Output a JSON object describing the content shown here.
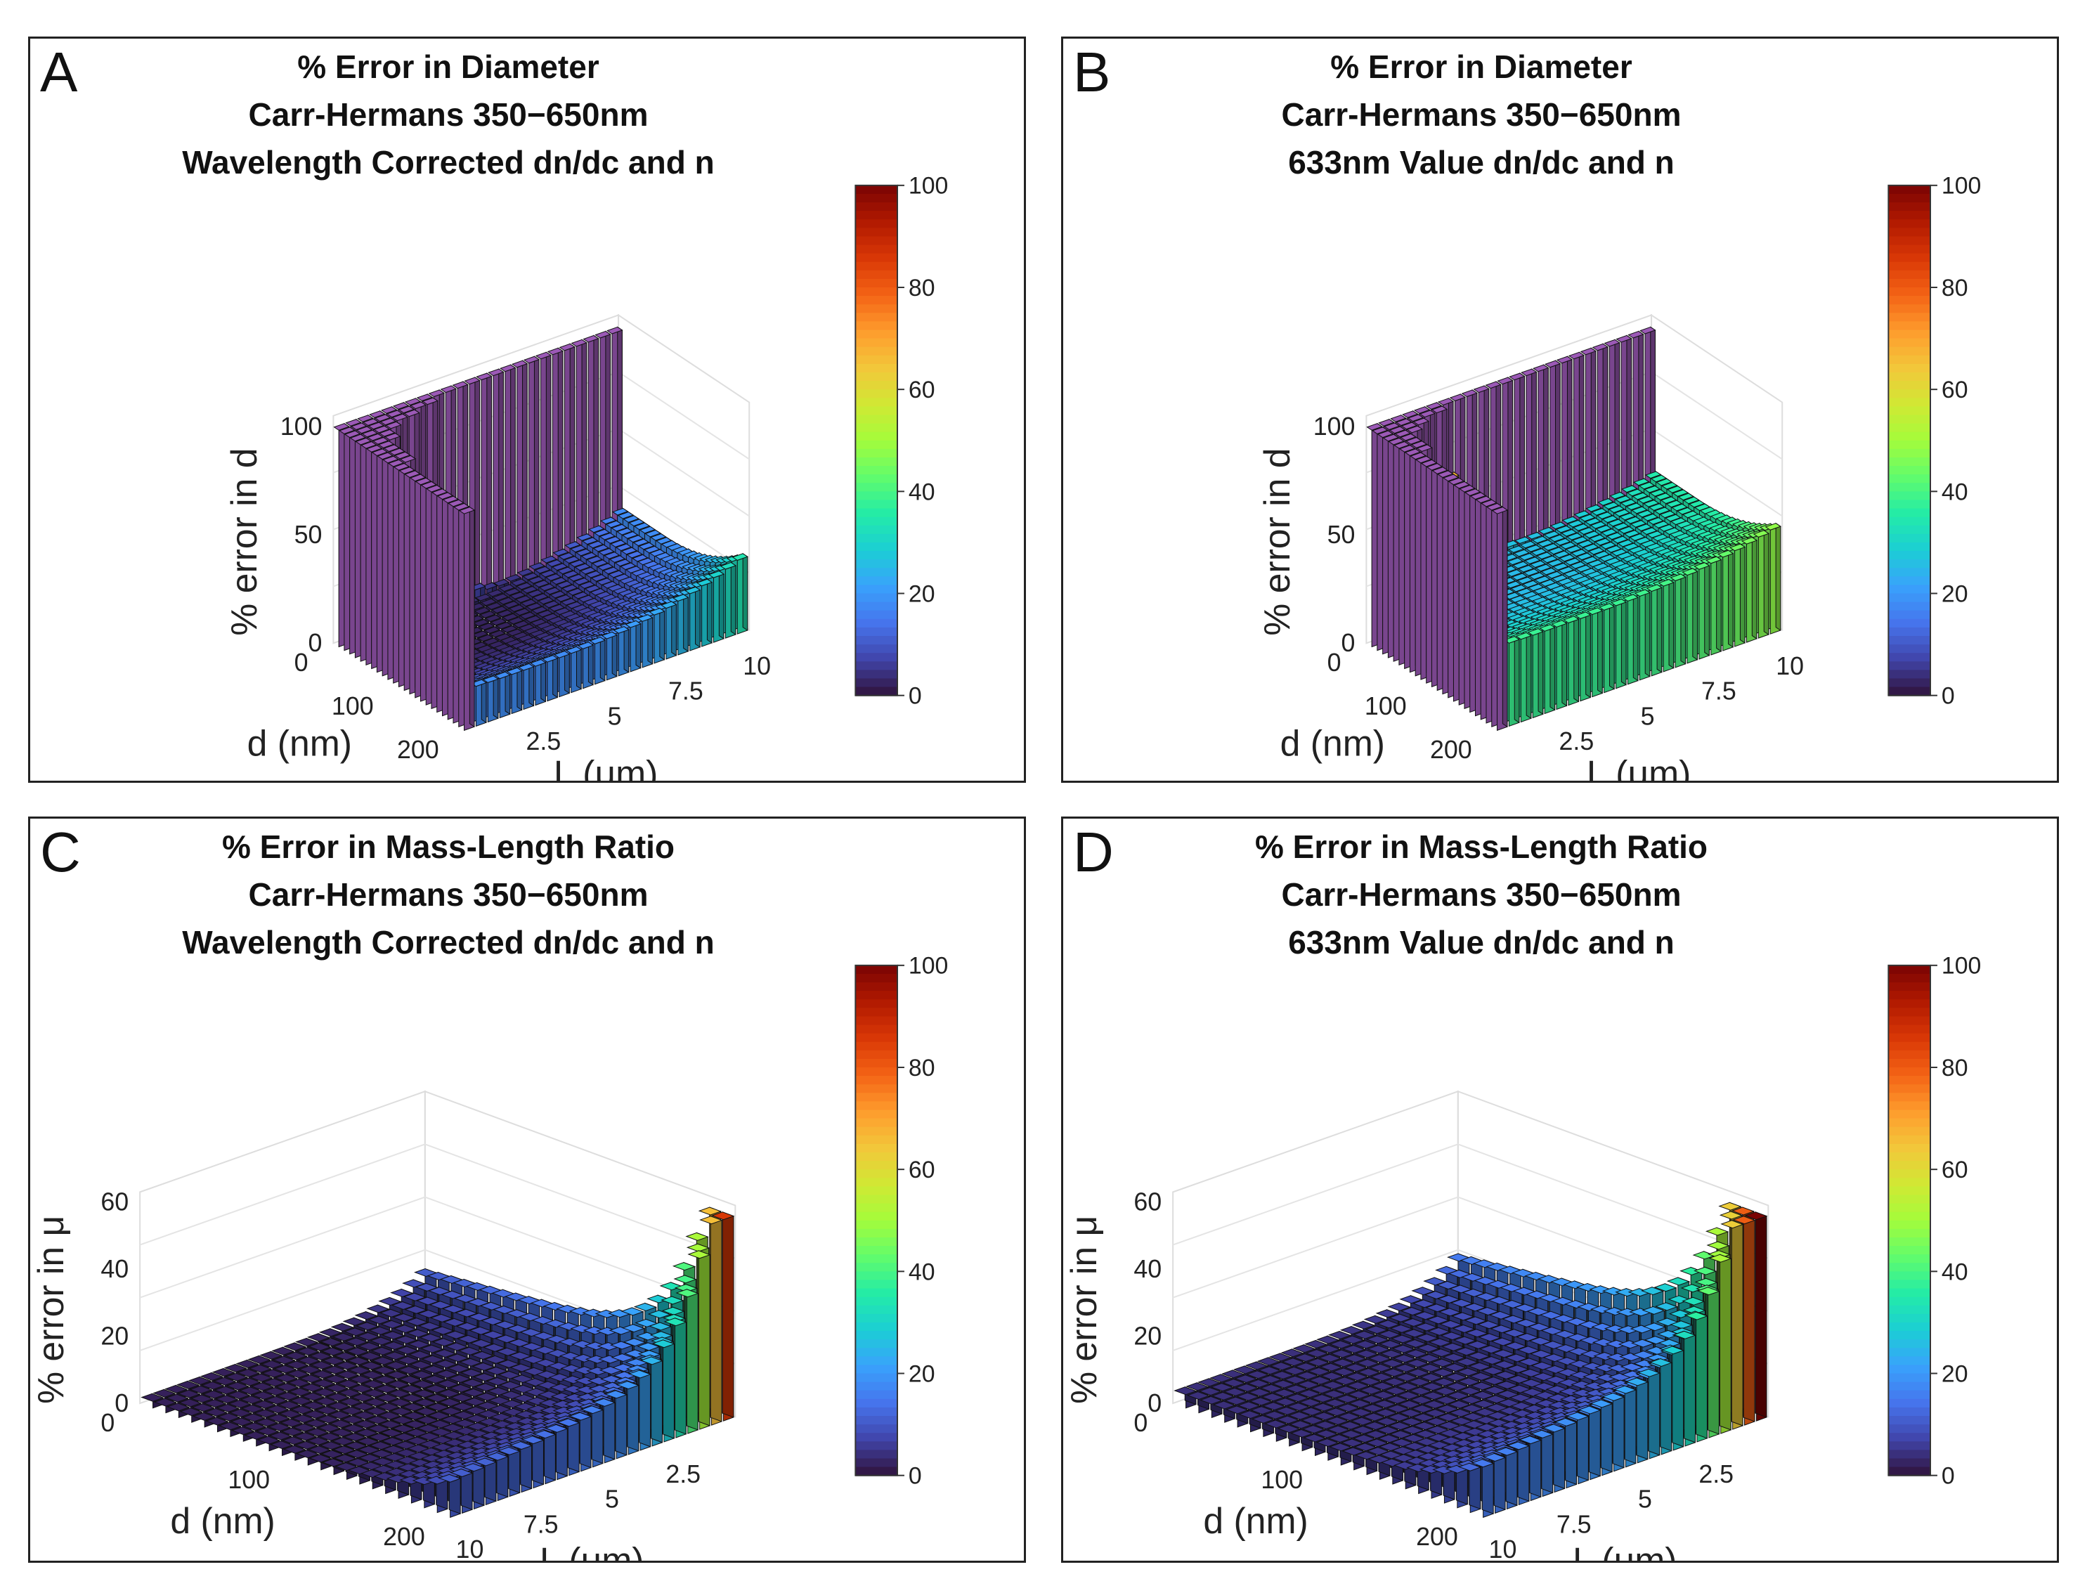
{
  "colormap": [
    "#30123b",
    "#4145ab",
    "#4675ed",
    "#39a2fc",
    "#1bcfd4",
    "#24eca6",
    "#61fc6c",
    "#a4fc3b",
    "#d1e834",
    "#f3c63a",
    "#fe9b2d",
    "#f36315",
    "#d93806",
    "#b11901",
    "#7a0403"
  ],
  "top_block_color": "#9b59b6",
  "panels": [
    {
      "letter": "A",
      "title": [
        "% Error in Diameter",
        "Carr-Hermans 350−650nm",
        "Wavelength Corrected dn/dc and n"
      ],
      "chart_data": {
        "type": "bar3d",
        "orientation": "diameter",
        "zlabel": "% error in d",
        "xlabel": "L (μm)",
        "ylabel": "d (nm)",
        "z_ticks": [
          "0",
          "50",
          "100"
        ],
        "z_range": [
          0,
          100
        ],
        "d_ticks": [
          "0",
          "100",
          "200"
        ],
        "L_ticks": [
          "2.5",
          "5",
          "7.5",
          "10"
        ],
        "colorbar": {
          "range": [
            0,
            100
          ],
          "ticks": [
            "0",
            "20",
            "40",
            "60",
            "80",
            "100"
          ]
        },
        "surface": {
          "cutoff_d_nm": [
            8,
            12,
            18,
            25,
            35,
            45,
            55,
            65,
            80,
            95,
            110,
            120
          ],
          "cutoff_L_um": [
            3.5,
            3.0,
            2.5,
            2.0,
            1.5,
            1.3,
            1.1,
            1.0,
            0.9,
            0.8,
            0.7,
            0.6
          ],
          "max_value": 100,
          "edge_value_long_L": 18,
          "edge_value_large_d": 18,
          "valley_min": 2
        }
      }
    },
    {
      "letter": "B",
      "title": [
        "% Error in Diameter",
        "Carr-Hermans 350−650nm",
        "633nm Value dn/dc and n"
      ],
      "chart_data": {
        "type": "bar3d",
        "orientation": "diameter",
        "zlabel": "% error in d",
        "xlabel": "L (μm)",
        "ylabel": "d (nm)",
        "z_ticks": [
          "0",
          "50",
          "100"
        ],
        "z_range": [
          0,
          100
        ],
        "d_ticks": [
          "0",
          "100",
          "200"
        ],
        "L_ticks": [
          "2.5",
          "5",
          "7.5",
          "10"
        ],
        "colorbar": {
          "range": [
            0,
            100
          ],
          "ticks": [
            "0",
            "20",
            "40",
            "60",
            "80",
            "100"
          ]
        },
        "surface": {
          "cutoff_d_nm": [
            5,
            10,
            15,
            22,
            30,
            40,
            50,
            60,
            70,
            80,
            90,
            100
          ],
          "cutoff_L_um": [
            3.0,
            2.5,
            2.0,
            1.6,
            1.3,
            1.1,
            1.0,
            0.9,
            0.8,
            0.7,
            0.6,
            0.5
          ],
          "max_value": 100,
          "edge_value_long_L": 35,
          "edge_value_large_d": 38,
          "valley_min": 25
        }
      }
    },
    {
      "letter": "C",
      "title": [
        "% Error in Mass-Length Ratio",
        "Carr-Hermans 350−650nm",
        "Wavelength Corrected dn/dc and n"
      ],
      "chart_data": {
        "type": "bar3d",
        "orientation": "mass",
        "zlabel": "% error in μ",
        "xlabel": "L (μm)",
        "ylabel": "d (nm)",
        "z_ticks": [
          "0",
          "20",
          "40",
          "60"
        ],
        "z_range": [
          0,
          60
        ],
        "d_ticks": [
          "0",
          "100",
          "200"
        ],
        "L_ticks": [
          "2.5",
          "5",
          "7.5",
          "10"
        ],
        "colorbar": {
          "range": [
            0,
            100
          ],
          "ticks": [
            "0",
            "20",
            "40",
            "60",
            "80",
            "100"
          ]
        },
        "surface": {
          "corner_value": 50,
          "edge_value_d": 17,
          "edge_value_L": 17,
          "floor_value": 2
        }
      }
    },
    {
      "letter": "D",
      "title": [
        "% Error in Mass-Length Ratio",
        "Carr-Hermans 350−650nm",
        "633nm Value dn/dc and n"
      ],
      "chart_data": {
        "type": "bar3d",
        "orientation": "mass",
        "zlabel": "% error in μ",
        "xlabel": "L (μm)",
        "ylabel": "d (nm)",
        "z_ticks": [
          "0",
          "20",
          "40",
          "60"
        ],
        "z_range": [
          0,
          60
        ],
        "d_ticks": [
          "0",
          "100",
          "200"
        ],
        "L_ticks": [
          "2.5",
          "5",
          "7.5",
          "10"
        ],
        "colorbar": {
          "range": [
            0,
            100
          ],
          "ticks": [
            "0",
            "20",
            "40",
            "60",
            "80",
            "100"
          ]
        },
        "surface": {
          "corner_value": 55,
          "edge_value_d": 22,
          "edge_value_L": 22,
          "floor_value": 4
        }
      }
    }
  ]
}
